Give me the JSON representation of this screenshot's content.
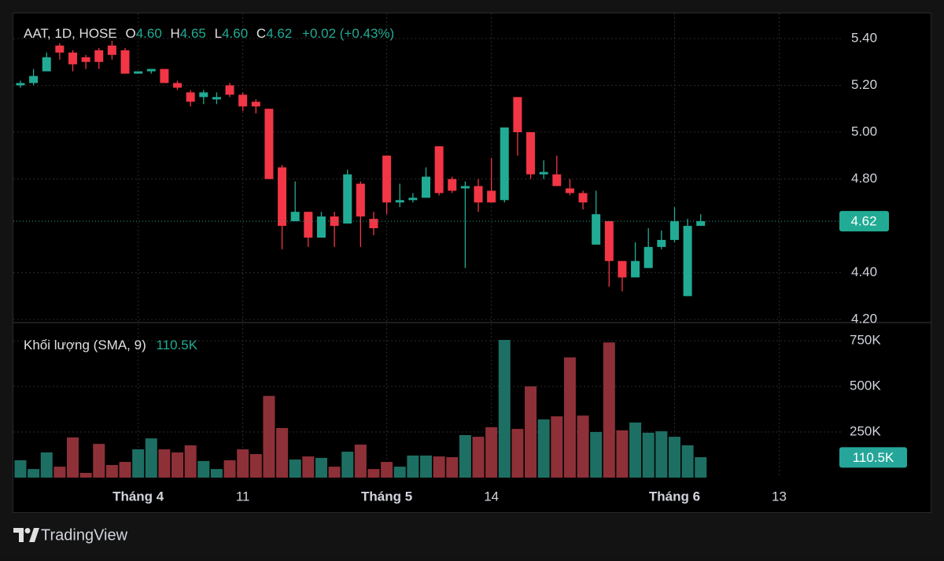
{
  "chart_data": [
    {
      "type": "candlestick",
      "title": "AAT, 1D, HOSE",
      "header": {
        "o_label": "O",
        "o": "4.60",
        "h_label": "H",
        "h": "4.65",
        "l_label": "L",
        "l": "4.60",
        "c_label": "C",
        "c": "4.62",
        "change": "+0.02 (+0.43%)"
      },
      "open": [
        5.2,
        5.21,
        5.26,
        5.37,
        5.34,
        5.32,
        5.35,
        5.37,
        5.35,
        5.25,
        5.26,
        5.27,
        5.21,
        5.17,
        5.15,
        5.14,
        5.2,
        5.16,
        5.13,
        5.1,
        4.85,
        4.62,
        4.66,
        4.55,
        4.64,
        4.61,
        4.78,
        4.63,
        4.9,
        4.7,
        4.71,
        4.72,
        4.94,
        4.8,
        4.76,
        4.77,
        4.75,
        4.71,
        5.15,
        5.0,
        4.82,
        4.82,
        4.76,
        4.74,
        4.52,
        4.62,
        4.45,
        4.38,
        4.42,
        4.51,
        4.54,
        4.3,
        4.6
      ],
      "high": [
        5.22,
        5.27,
        5.34,
        5.38,
        5.35,
        5.33,
        5.36,
        5.39,
        5.36,
        5.26,
        5.27,
        5.27,
        5.22,
        5.18,
        5.18,
        5.17,
        5.21,
        5.17,
        5.14,
        5.1,
        4.86,
        4.79,
        4.66,
        4.66,
        4.66,
        4.84,
        4.79,
        4.66,
        4.9,
        4.78,
        4.74,
        4.85,
        4.94,
        4.81,
        4.79,
        4.8,
        4.89,
        5.02,
        5.15,
        5.0,
        4.88,
        4.9,
        4.8,
        4.75,
        4.75,
        4.62,
        4.45,
        4.53,
        4.59,
        4.58,
        4.68,
        4.63,
        4.65
      ],
      "low": [
        5.19,
        5.2,
        5.26,
        5.31,
        5.26,
        5.27,
        5.27,
        5.31,
        5.25,
        5.25,
        5.25,
        5.21,
        5.18,
        5.11,
        5.12,
        5.12,
        5.15,
        5.09,
        5.08,
        4.8,
        4.5,
        4.62,
        4.51,
        4.55,
        4.51,
        4.61,
        4.51,
        4.56,
        4.65,
        4.68,
        4.7,
        4.72,
        4.73,
        4.74,
        4.42,
        4.66,
        4.7,
        4.7,
        4.9,
        4.8,
        4.8,
        4.77,
        4.73,
        4.67,
        4.52,
        4.34,
        4.32,
        4.38,
        4.42,
        4.5,
        4.53,
        4.3,
        4.6
      ],
      "close": [
        5.21,
        5.24,
        5.32,
        5.34,
        5.29,
        5.3,
        5.3,
        5.33,
        5.25,
        5.26,
        5.27,
        5.21,
        5.19,
        5.13,
        5.17,
        5.15,
        5.16,
        5.11,
        5.11,
        4.8,
        4.6,
        4.66,
        4.55,
        4.64,
        4.6,
        4.82,
        4.64,
        4.59,
        4.7,
        4.71,
        4.72,
        4.81,
        4.74,
        4.75,
        4.77,
        4.7,
        4.7,
        5.02,
        5.0,
        4.82,
        4.83,
        4.77,
        4.74,
        4.7,
        4.65,
        4.45,
        4.38,
        4.45,
        4.51,
        4.54,
        4.62,
        4.6,
        4.62
      ],
      "up_color": "#22ab94",
      "down_color": "#f23645",
      "last_value": 4.62,
      "ylim": [
        4.187,
        5.504
      ],
      "yticks": [
        {
          "value": 4.2,
          "label": "4.20"
        },
        {
          "value": 4.4,
          "label": "4.40"
        },
        {
          "value": 4.8,
          "label": "4.80"
        },
        {
          "value": 5.0,
          "label": "5.00"
        },
        {
          "value": 5.2,
          "label": "5.20"
        },
        {
          "value": 5.4,
          "label": "5.40"
        }
      ],
      "xlim": [
        -0.54,
        62.78
      ],
      "xticks": [
        {
          "value": 9,
          "label": "Tháng 4"
        },
        {
          "value": 17,
          "label": "11"
        },
        {
          "value": 28,
          "label": "Tháng 5"
        },
        {
          "value": 36,
          "label": "14"
        },
        {
          "value": 50,
          "label": "Tháng 6"
        },
        {
          "value": 58,
          "label": "13"
        }
      ],
      "grid": true
    },
    {
      "type": "volume",
      "title": "Khối lượng (SMA, 9)",
      "values": [
        95000,
        47000,
        138000,
        60000,
        220000,
        26000,
        185000,
        69000,
        86000,
        155000,
        215000,
        155000,
        138000,
        177000,
        91000,
        47000,
        95000,
        155000,
        129000,
        448000,
        272000,
        99000,
        116000,
        108000,
        60000,
        142000,
        181000,
        47000,
        86000,
        60000,
        121000,
        121000,
        116000,
        112000,
        233000,
        224000,
        276000,
        755000,
        267000,
        500000,
        319000,
        336000,
        659000,
        340000,
        250000,
        741000,
        259000,
        302000,
        246000,
        254000,
        224000,
        177000,
        112000
      ],
      "up_color": "#1e6f63",
      "down_color": "#8e3038",
      "sma": {
        "value": 110500,
        "label": "110.5K"
      },
      "ylim": [
        0,
        850000
      ],
      "yticks": [
        {
          "value": 250000,
          "label": "250K"
        },
        {
          "value": 500000,
          "label": "500K"
        },
        {
          "value": 750000,
          "label": "750K"
        }
      ]
    }
  ],
  "footer": "TradingView"
}
